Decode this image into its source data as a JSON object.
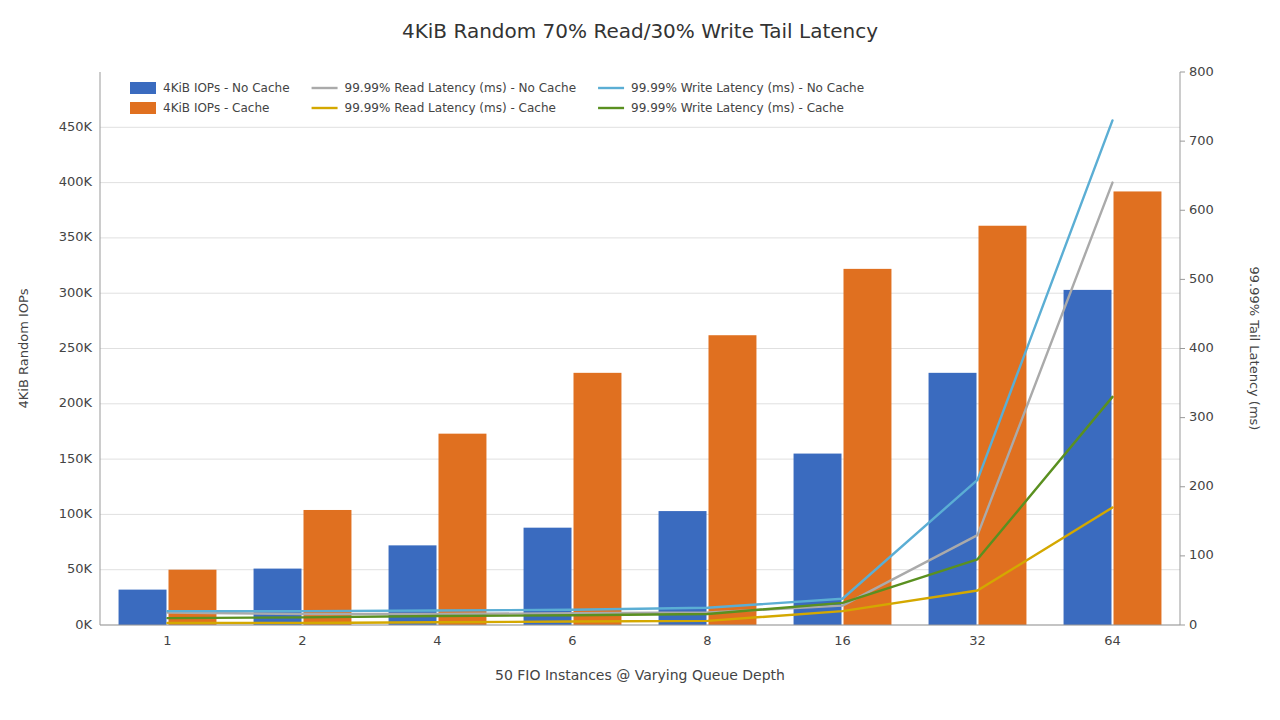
{
  "chart_data": {
    "type": "bar",
    "title": "4KiB Random 70% Read/30% Write Tail Latency",
    "x_label": "50 FIO Instances @ Varying Queue Depth",
    "y_label": "4KiB Random IOPs",
    "y2_label": "99.99% Tail Latency (ms)",
    "categories": [
      "1",
      "2",
      "4",
      "6",
      "8",
      "16",
      "32",
      "64"
    ],
    "series": [
      {
        "name": "4KiB IOPs - No Cache",
        "type": "bar",
        "color": "#3a6bbf",
        "values": [
          32000,
          51000,
          72000,
          88000,
          103000,
          155000,
          228000,
          303000
        ]
      },
      {
        "name": "4KiB IOPs - Cache",
        "type": "bar",
        "color": "#e07020",
        "values": [
          50000,
          104000,
          173000,
          228000,
          262000,
          322000,
          361000,
          392000
        ]
      },
      {
        "name": "99.99% Read Latency (ms) - No Cache",
        "type": "line",
        "axis": "y2",
        "color": "#aaaaaa",
        "values": [
          18,
          16,
          16,
          17,
          18,
          28,
          130,
          640
        ]
      },
      {
        "name": "99.99% Read Latency (ms) - Cache",
        "type": "line",
        "axis": "y2",
        "color": "#d4a800",
        "values": [
          3,
          3,
          4,
          5,
          6,
          20,
          50,
          170
        ]
      },
      {
        "name": "99.99% Write Latency (ms) - No Cache",
        "type": "line",
        "axis": "y2",
        "color": "#5baed4",
        "values": [
          20,
          20,
          21,
          22,
          25,
          38,
          210,
          730
        ]
      },
      {
        "name": "99.99% Write Latency (ms) - Cache",
        "type": "line",
        "axis": "y2",
        "color": "#5a9020",
        "values": [
          10,
          11,
          13,
          14,
          16,
          32,
          95,
          330
        ]
      }
    ],
    "ylim": [
      0,
      500000
    ],
    "yticks": [
      {
        "value": 0,
        "label": "0K"
      },
      {
        "value": 50000,
        "label": "50K"
      },
      {
        "value": 100000,
        "label": "100K"
      },
      {
        "value": 150000,
        "label": "150K"
      },
      {
        "value": 200000,
        "label": "200K"
      },
      {
        "value": 250000,
        "label": "250K"
      },
      {
        "value": 300000,
        "label": "300K"
      },
      {
        "value": 350000,
        "label": "350K"
      },
      {
        "value": 400000,
        "label": "400K"
      },
      {
        "value": 450000,
        "label": "450K"
      }
    ],
    "y2lim": [
      0,
      800
    ],
    "y2ticks": [
      0,
      100,
      200,
      300,
      400,
      500,
      600,
      700,
      800
    ],
    "grid": true,
    "legend": "upper left"
  }
}
